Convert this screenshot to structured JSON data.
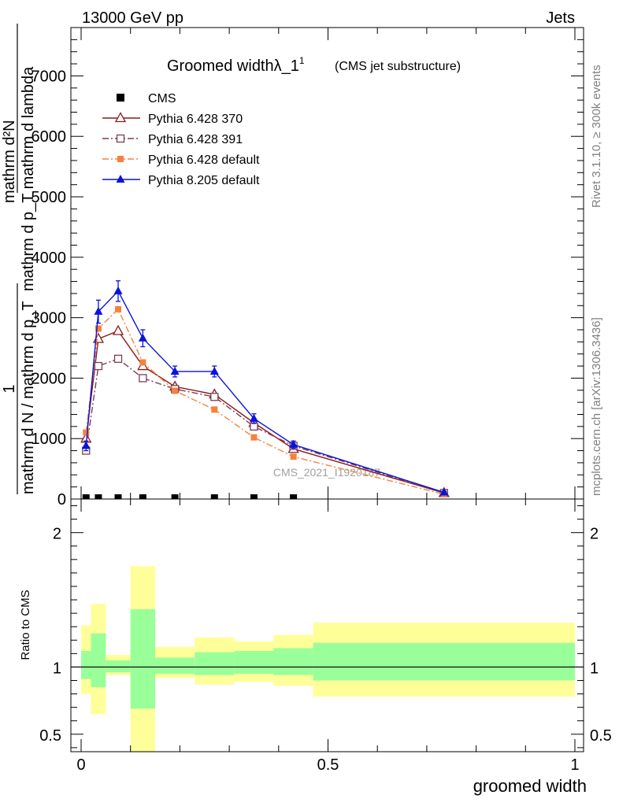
{
  "header": {
    "energy_label": "13000 GeV pp",
    "process_label": "Jets",
    "rivet_label": "Rivet 3.1.10, ≥ 300k events",
    "mcplots_label": "mcplots.cern.ch [arXiv:1306.3436]",
    "watermark": "CMS_2021_I1920187"
  },
  "chart_data": [
    {
      "type": "line",
      "title": "Groomed widthλ_1",
      "title_superscript": "1",
      "subtitle": "(CMS jet substructure)",
      "ylabel": {
        "fraction_numerator": "1",
        "fraction_denominator": "mathrm d N / mathrm d p_T",
        "rhs_numerator": "mathrm d²N",
        "rhs_denominator": "mathrm d p_T mathrm d lambda"
      },
      "xlim": [
        0,
        1
      ],
      "ylim": [
        0,
        7800
      ],
      "yticks": [
        0,
        1000,
        2000,
        3000,
        4000,
        5000,
        6000,
        7000
      ],
      "ytick_labels": [
        "0",
        "1000",
        "2000",
        "3000",
        "4000",
        "5000",
        "6000",
        "7000"
      ],
      "legend": {
        "position": "top-left",
        "entries": [
          {
            "label": "CMS",
            "color": "#000000",
            "marker": "square"
          },
          {
            "label": "Pythia 6.428 370",
            "color": "#8b1a1a",
            "marker": "triangle-open"
          },
          {
            "label": "Pythia 6.428 391",
            "color": "#7b3f56",
            "marker": "square-open"
          },
          {
            "label": "Pythia 6.428 default",
            "color": "#f5823c",
            "marker": "square"
          },
          {
            "label": "Pythia 8.205 default",
            "color": "#0a14d8",
            "marker": "triangle"
          }
        ]
      },
      "series": [
        {
          "name": "CMS",
          "color": "#000000",
          "x": [
            0.01,
            0.035,
            0.075,
            0.125,
            0.19,
            0.27,
            0.35,
            0.43
          ],
          "values": [
            0,
            0,
            0,
            0,
            0,
            0,
            0,
            0
          ]
        },
        {
          "name": "Pythia 6.428 370",
          "color": "#8b1a1a",
          "x": [
            0.01,
            0.035,
            0.075,
            0.125,
            0.19,
            0.27,
            0.35,
            0.43,
            0.735
          ],
          "values": [
            1000,
            2650,
            2780,
            2200,
            1860,
            1730,
            1260,
            830,
            100
          ]
        },
        {
          "name": "Pythia 6.428 391",
          "color": "#7b3f56",
          "x": [
            0.01,
            0.035,
            0.075,
            0.125,
            0.19,
            0.27,
            0.35,
            0.43,
            0.735
          ],
          "values": [
            800,
            2200,
            2320,
            2000,
            1820,
            1690,
            1200,
            880,
            100
          ]
        },
        {
          "name": "Pythia 6.428 default",
          "color": "#f5823c",
          "x": [
            0.01,
            0.035,
            0.075,
            0.125,
            0.19,
            0.27,
            0.35,
            0.43,
            0.735
          ],
          "values": [
            1100,
            2820,
            3140,
            2260,
            1790,
            1480,
            1020,
            700,
            80
          ]
        },
        {
          "name": "Pythia 8.205 default",
          "color": "#0a14d8",
          "x": [
            0.01,
            0.035,
            0.075,
            0.125,
            0.19,
            0.27,
            0.35,
            0.43,
            0.735
          ],
          "values": [
            880,
            3100,
            3440,
            2660,
            2110,
            2110,
            1330,
            900,
            110
          ],
          "errors": [
            80,
            190,
            170,
            140,
            90,
            90,
            80,
            60,
            20
          ]
        }
      ]
    },
    {
      "type": "area",
      "ylabel": "Ratio to CMS",
      "xlabel": "groomed width",
      "xlim": [
        -0.02,
        1.02
      ],
      "ylim": [
        0.37,
        2.25
      ],
      "yticks": [
        0.5,
        1,
        2
      ],
      "ytick_labels": [
        "0.5",
        "1",
        "2"
      ],
      "xticks": [
        0,
        0.5,
        1
      ],
      "xtick_labels": [
        "0",
        "0.5",
        "1"
      ],
      "reference_line": 1,
      "bins": [
        {
          "xlo": 0.0,
          "xhi": 0.02,
          "inner": [
            0.91,
            1.12
          ],
          "outer": [
            0.8,
            1.31
          ]
        },
        {
          "xlo": 0.02,
          "xhi": 0.05,
          "inner": [
            0.85,
            1.25
          ],
          "outer": [
            0.65,
            1.47
          ]
        },
        {
          "xlo": 0.05,
          "xhi": 0.1,
          "inner": [
            0.96,
            1.05
          ],
          "outer": [
            0.94,
            1.09
          ]
        },
        {
          "xlo": 0.1,
          "xhi": 0.15,
          "inner": [
            0.69,
            1.43
          ],
          "outer": [
            0.37,
            1.75
          ]
        },
        {
          "xlo": 0.15,
          "xhi": 0.23,
          "inner": [
            0.95,
            1.07
          ],
          "outer": [
            0.92,
            1.15
          ]
        },
        {
          "xlo": 0.23,
          "xhi": 0.31,
          "inner": [
            0.94,
            1.11
          ],
          "outer": [
            0.87,
            1.22
          ]
        },
        {
          "xlo": 0.31,
          "xhi": 0.39,
          "inner": [
            0.95,
            1.12
          ],
          "outer": [
            0.89,
            1.19
          ]
        },
        {
          "xlo": 0.39,
          "xhi": 0.47,
          "inner": [
            0.94,
            1.14
          ],
          "outer": [
            0.86,
            1.24
          ]
        },
        {
          "xlo": 0.47,
          "xhi": 1.0,
          "inner": [
            0.9,
            1.18
          ],
          "outer": [
            0.78,
            1.33
          ]
        }
      ],
      "inner_color": "#99ff99",
      "outer_color": "#ffff99"
    }
  ]
}
